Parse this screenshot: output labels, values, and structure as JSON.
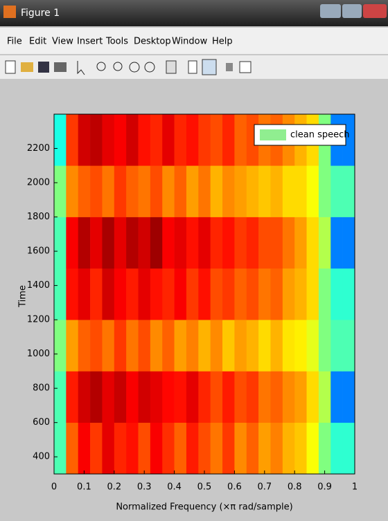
{
  "window": {
    "title": "Figure 1",
    "menu": [
      "File",
      "Edit",
      "View",
      "Insert",
      "Tools",
      "Desktop",
      "Window",
      "Help"
    ]
  },
  "chart_data": {
    "type": "heatmap",
    "xlabel": "Normalized Frequency  (×π rad/sample)",
    "ylabel": "Time",
    "x": [
      0.02,
      0.06,
      0.1,
      0.14,
      0.18,
      0.22,
      0.26,
      0.3,
      0.34,
      0.38,
      0.42,
      0.46,
      0.5,
      0.54,
      0.58,
      0.62,
      0.66,
      0.7,
      0.74,
      0.78,
      0.82,
      0.86,
      0.9,
      0.94,
      0.98
    ],
    "y": [
      450,
      750,
      1050,
      1350,
      1650,
      1950,
      2250
    ],
    "values": [
      [
        0.45,
        0.78,
        0.88,
        0.82,
        0.9,
        0.84,
        0.86,
        0.8,
        0.88,
        0.83,
        0.78,
        0.85,
        0.8,
        0.76,
        0.82,
        0.74,
        0.78,
        0.72,
        0.75,
        0.7,
        0.68,
        0.62,
        0.5,
        0.42,
        0.42
      ],
      [
        0.45,
        0.85,
        0.92,
        0.95,
        0.9,
        0.93,
        0.88,
        0.92,
        0.9,
        0.87,
        0.86,
        0.9,
        0.84,
        0.8,
        0.85,
        0.8,
        0.82,
        0.76,
        0.78,
        0.74,
        0.72,
        0.66,
        0.55,
        0.25,
        0.25
      ],
      [
        0.5,
        0.72,
        0.78,
        0.8,
        0.76,
        0.82,
        0.76,
        0.8,
        0.74,
        0.78,
        0.72,
        0.75,
        0.7,
        0.74,
        0.68,
        0.72,
        0.7,
        0.66,
        0.7,
        0.65,
        0.64,
        0.6,
        0.5,
        0.45,
        0.45
      ],
      [
        0.45,
        0.86,
        0.9,
        0.84,
        0.92,
        0.88,
        0.85,
        0.9,
        0.86,
        0.84,
        0.88,
        0.82,
        0.86,
        0.8,
        0.82,
        0.78,
        0.8,
        0.76,
        0.78,
        0.72,
        0.7,
        0.66,
        0.5,
        0.42,
        0.42
      ],
      [
        0.45,
        0.88,
        0.95,
        0.9,
        0.96,
        0.9,
        0.95,
        0.92,
        0.97,
        0.88,
        0.9,
        0.86,
        0.9,
        0.84,
        0.86,
        0.82,
        0.84,
        0.8,
        0.8,
        0.76,
        0.72,
        0.66,
        0.55,
        0.25,
        0.25
      ],
      [
        0.5,
        0.74,
        0.78,
        0.8,
        0.76,
        0.82,
        0.78,
        0.76,
        0.8,
        0.74,
        0.78,
        0.72,
        0.76,
        0.7,
        0.74,
        0.72,
        0.7,
        0.68,
        0.7,
        0.66,
        0.66,
        0.62,
        0.5,
        0.45,
        0.45
      ],
      [
        0.4,
        0.82,
        0.92,
        0.94,
        0.9,
        0.88,
        0.92,
        0.86,
        0.84,
        0.9,
        0.84,
        0.86,
        0.82,
        0.8,
        0.84,
        0.78,
        0.8,
        0.76,
        0.78,
        0.74,
        0.7,
        0.66,
        0.5,
        0.25,
        0.25
      ]
    ],
    "colormap": "jet",
    "clim": [
      0,
      1
    ],
    "xlim": [
      0,
      1
    ],
    "xticks": [
      0,
      0.1,
      0.2,
      0.3,
      0.4,
      0.5,
      0.6,
      0.7,
      0.8,
      0.9,
      1
    ],
    "ylim": [
      300,
      2400
    ],
    "yticks": [
      400,
      600,
      800,
      1000,
      1200,
      1400,
      1600,
      1800,
      2000,
      2200
    ],
    "legend": {
      "label": "clean speech",
      "color": "#90ee90",
      "position": "upper right"
    }
  }
}
